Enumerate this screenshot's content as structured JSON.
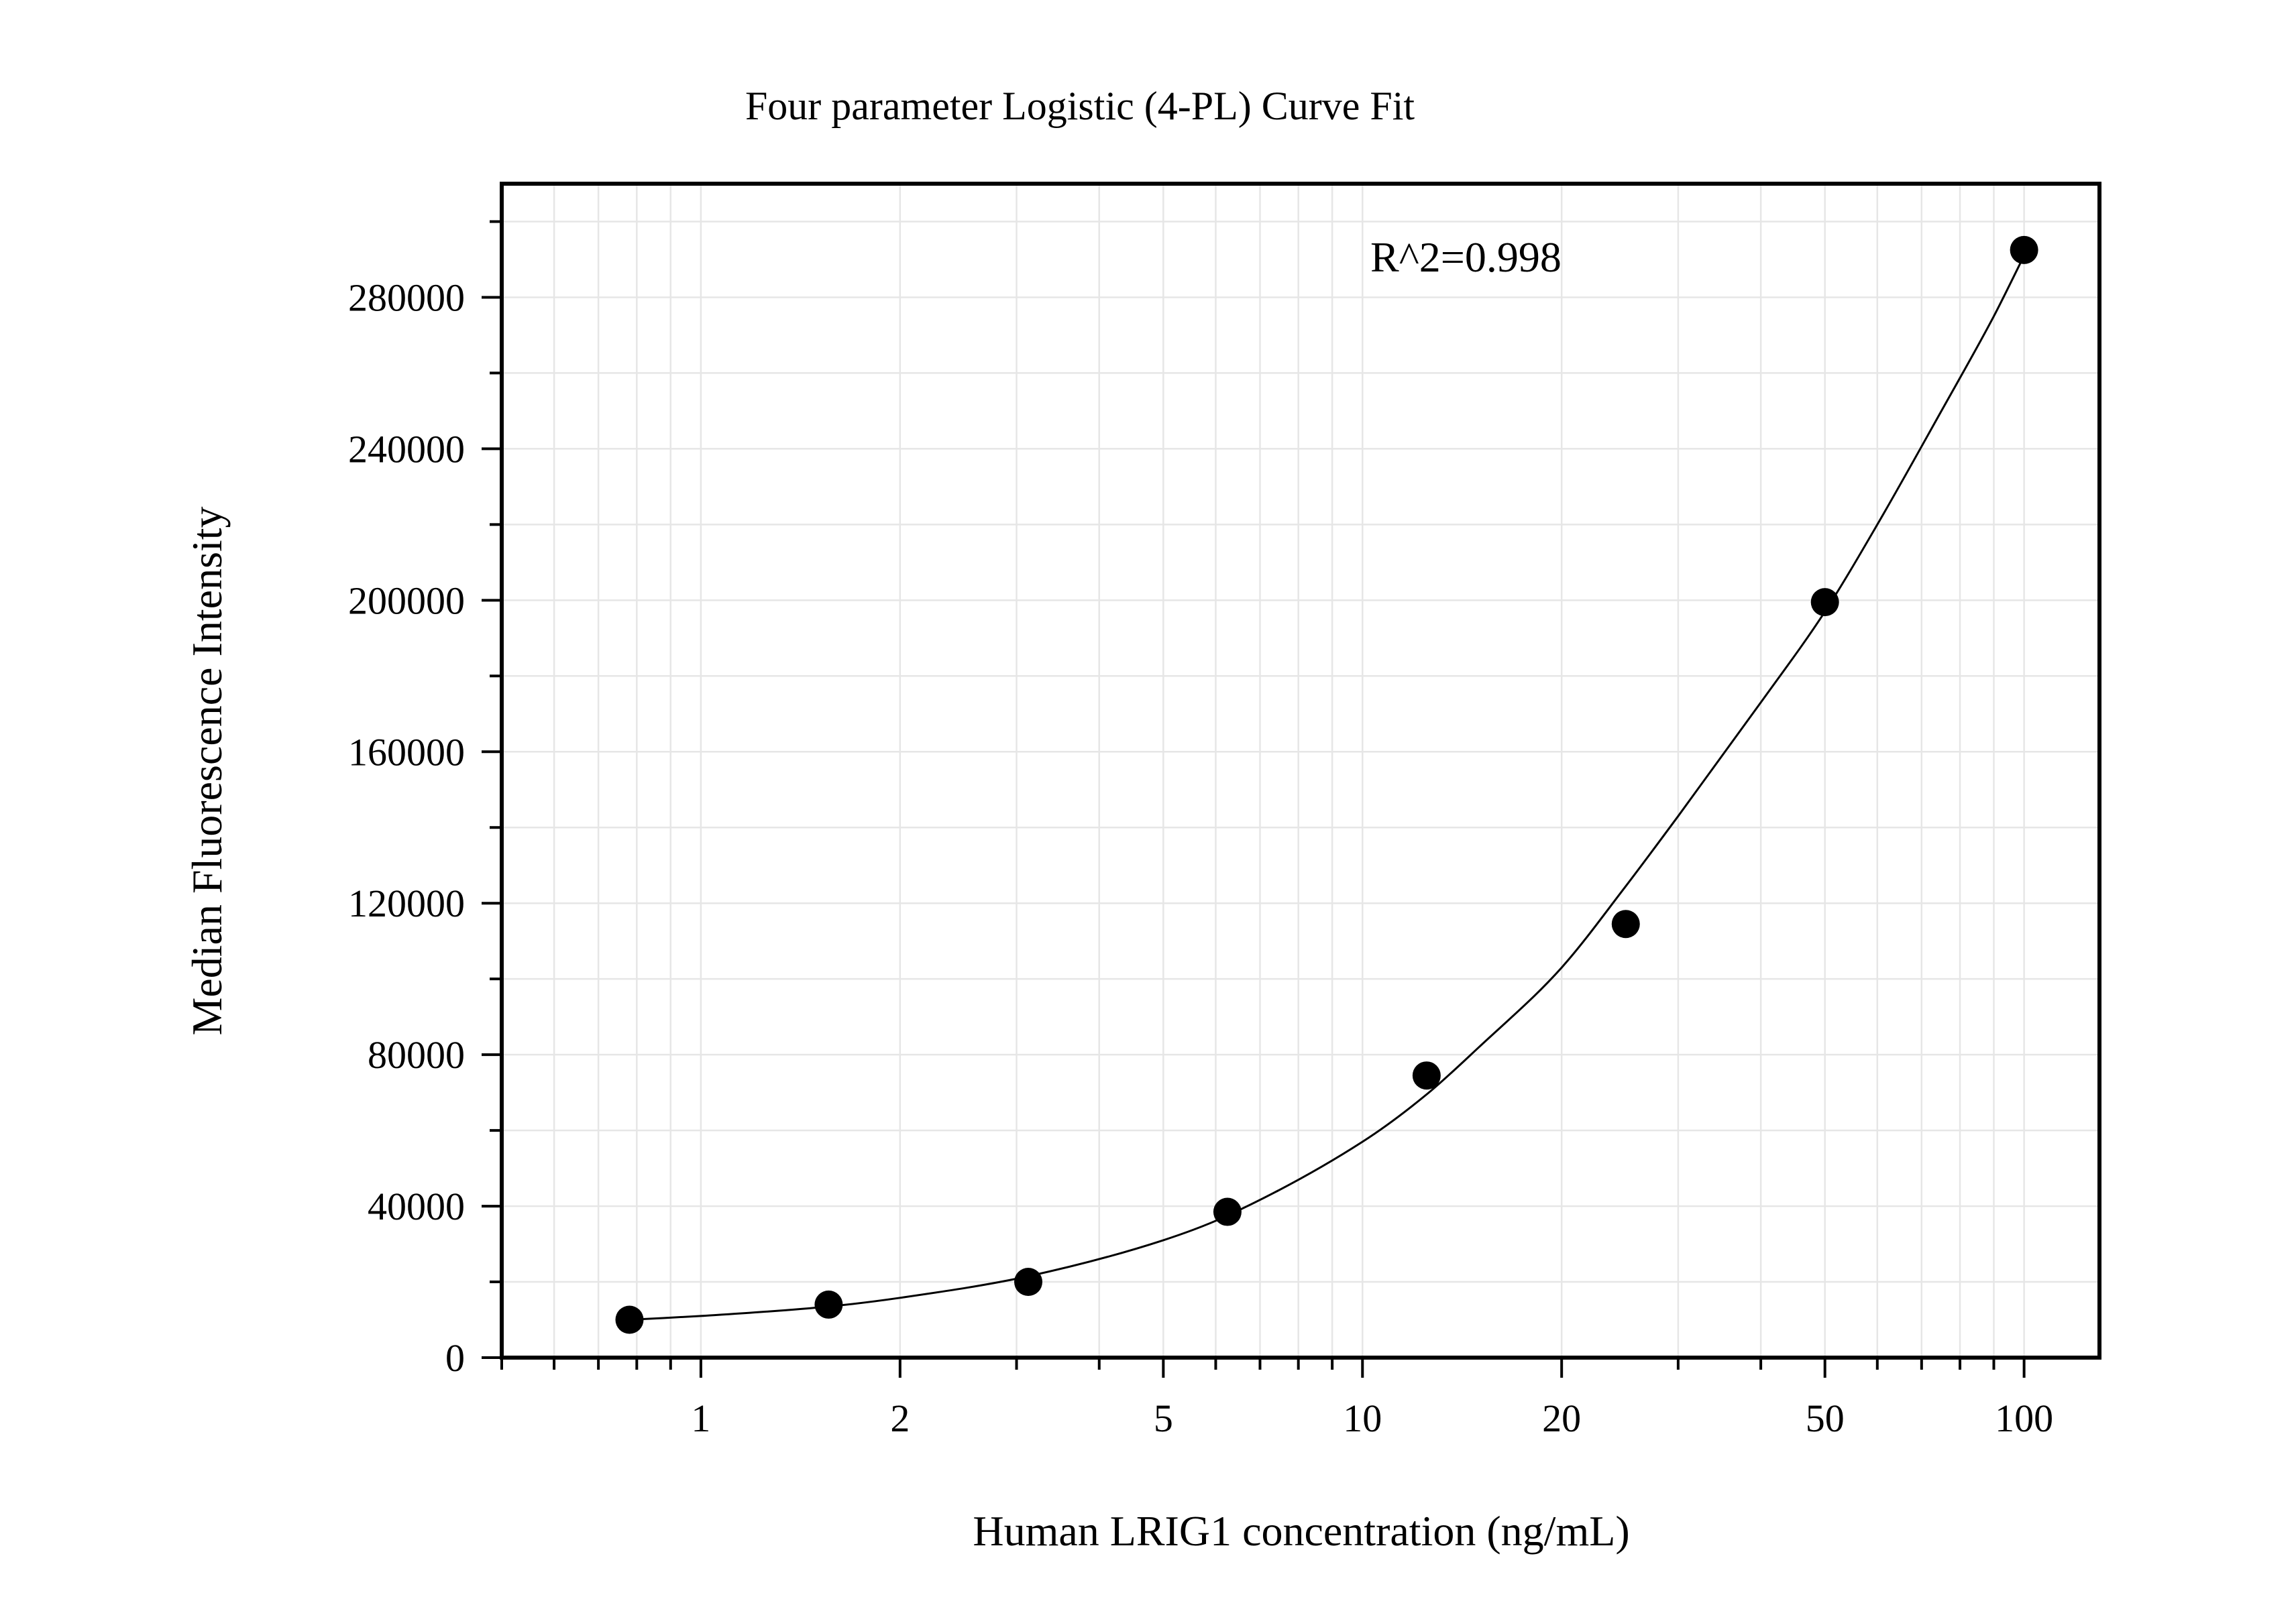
{
  "chart_data": {
    "type": "scatter",
    "title": "Four parameter Logistic (4-PL) Curve Fit",
    "xlabel": "Human LRIG1 concentration (ng/mL)",
    "ylabel": "Median Fluorescence Intensity",
    "x_scale": "log",
    "xlim": [
      0.5,
      130
    ],
    "ylim": [
      0,
      310000
    ],
    "x_ticks": [
      1,
      2,
      5,
      10,
      20,
      50,
      100
    ],
    "x_tick_labels": [
      "1",
      "2",
      "5",
      "10",
      "20",
      "50",
      "100"
    ],
    "y_ticks": [
      0,
      40000,
      80000,
      120000,
      160000,
      200000,
      240000,
      280000
    ],
    "y_tick_labels": [
      "0",
      "40000",
      "80000",
      "120000",
      "160000",
      "200000",
      "240000",
      "280000"
    ],
    "grid": true,
    "annotation": "R^2=0.998",
    "series": [
      {
        "kind": "points",
        "x": [
          0.78,
          1.56,
          3.125,
          6.25,
          12.5,
          25,
          50,
          100
        ],
        "y": [
          10000,
          14000,
          20000,
          38500,
          74500,
          114500,
          199500,
          292500
        ]
      },
      {
        "kind": "fit-curve",
        "x": [
          0.78,
          1,
          1.56,
          2,
          3.125,
          5,
          6.25,
          10,
          12.5,
          15,
          20,
          25,
          30,
          40,
          50,
          60,
          75,
          90,
          100
        ],
        "y": [
          10000,
          11000,
          13500,
          15800,
          21500,
          31000,
          37500,
          57000,
          69500,
          82000,
          103000,
          124500,
          143000,
          173000,
          197000,
          220000,
          250000,
          275000,
          291000
        ]
      }
    ],
    "colors": {
      "points": "#000000",
      "curve": "#000000",
      "grid": "#e6e6e6",
      "frame": "#000000"
    }
  }
}
